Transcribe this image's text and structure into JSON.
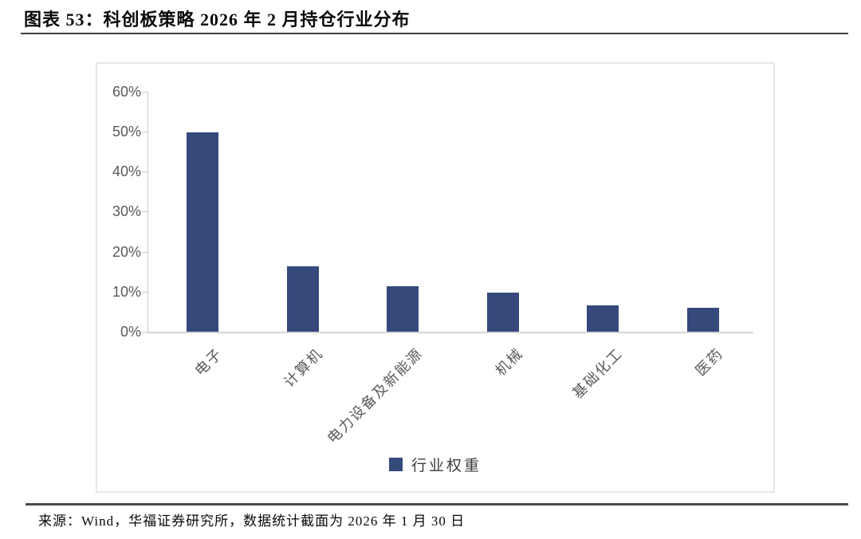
{
  "title": "图表 53：科创板策略 2026 年 2 月持仓行业分布",
  "source": "来源：Wind，华福证券研究所，数据统计截面为 2026 年 1 月 30 日",
  "colors": {
    "bar": "#35497B",
    "axis_text": "#595959",
    "axis_line": "#cdcdcd",
    "frame_border": "#e7e7e7",
    "rule": "#3f3f3f"
  },
  "chart_data": {
    "type": "bar",
    "title": "图表 53：科创板策略 2026 年 2 月持仓行业分布",
    "categories": [
      "电子",
      "计算机",
      "电力设备及新能源",
      "机械",
      "基础化工",
      "医药"
    ],
    "values": [
      49.8,
      16.4,
      11.3,
      9.7,
      6.5,
      6.0
    ],
    "series_name": "行业权重",
    "xlabel": "",
    "ylabel": "",
    "ylim": [
      0,
      60
    ],
    "ytick_step": 10,
    "ytick_labels": [
      "0%",
      "10%",
      "20%",
      "30%",
      "40%",
      "50%",
      "60%"
    ],
    "grid": false,
    "legend": [
      "行业权重"
    ],
    "legend_position": "bottom-center"
  }
}
